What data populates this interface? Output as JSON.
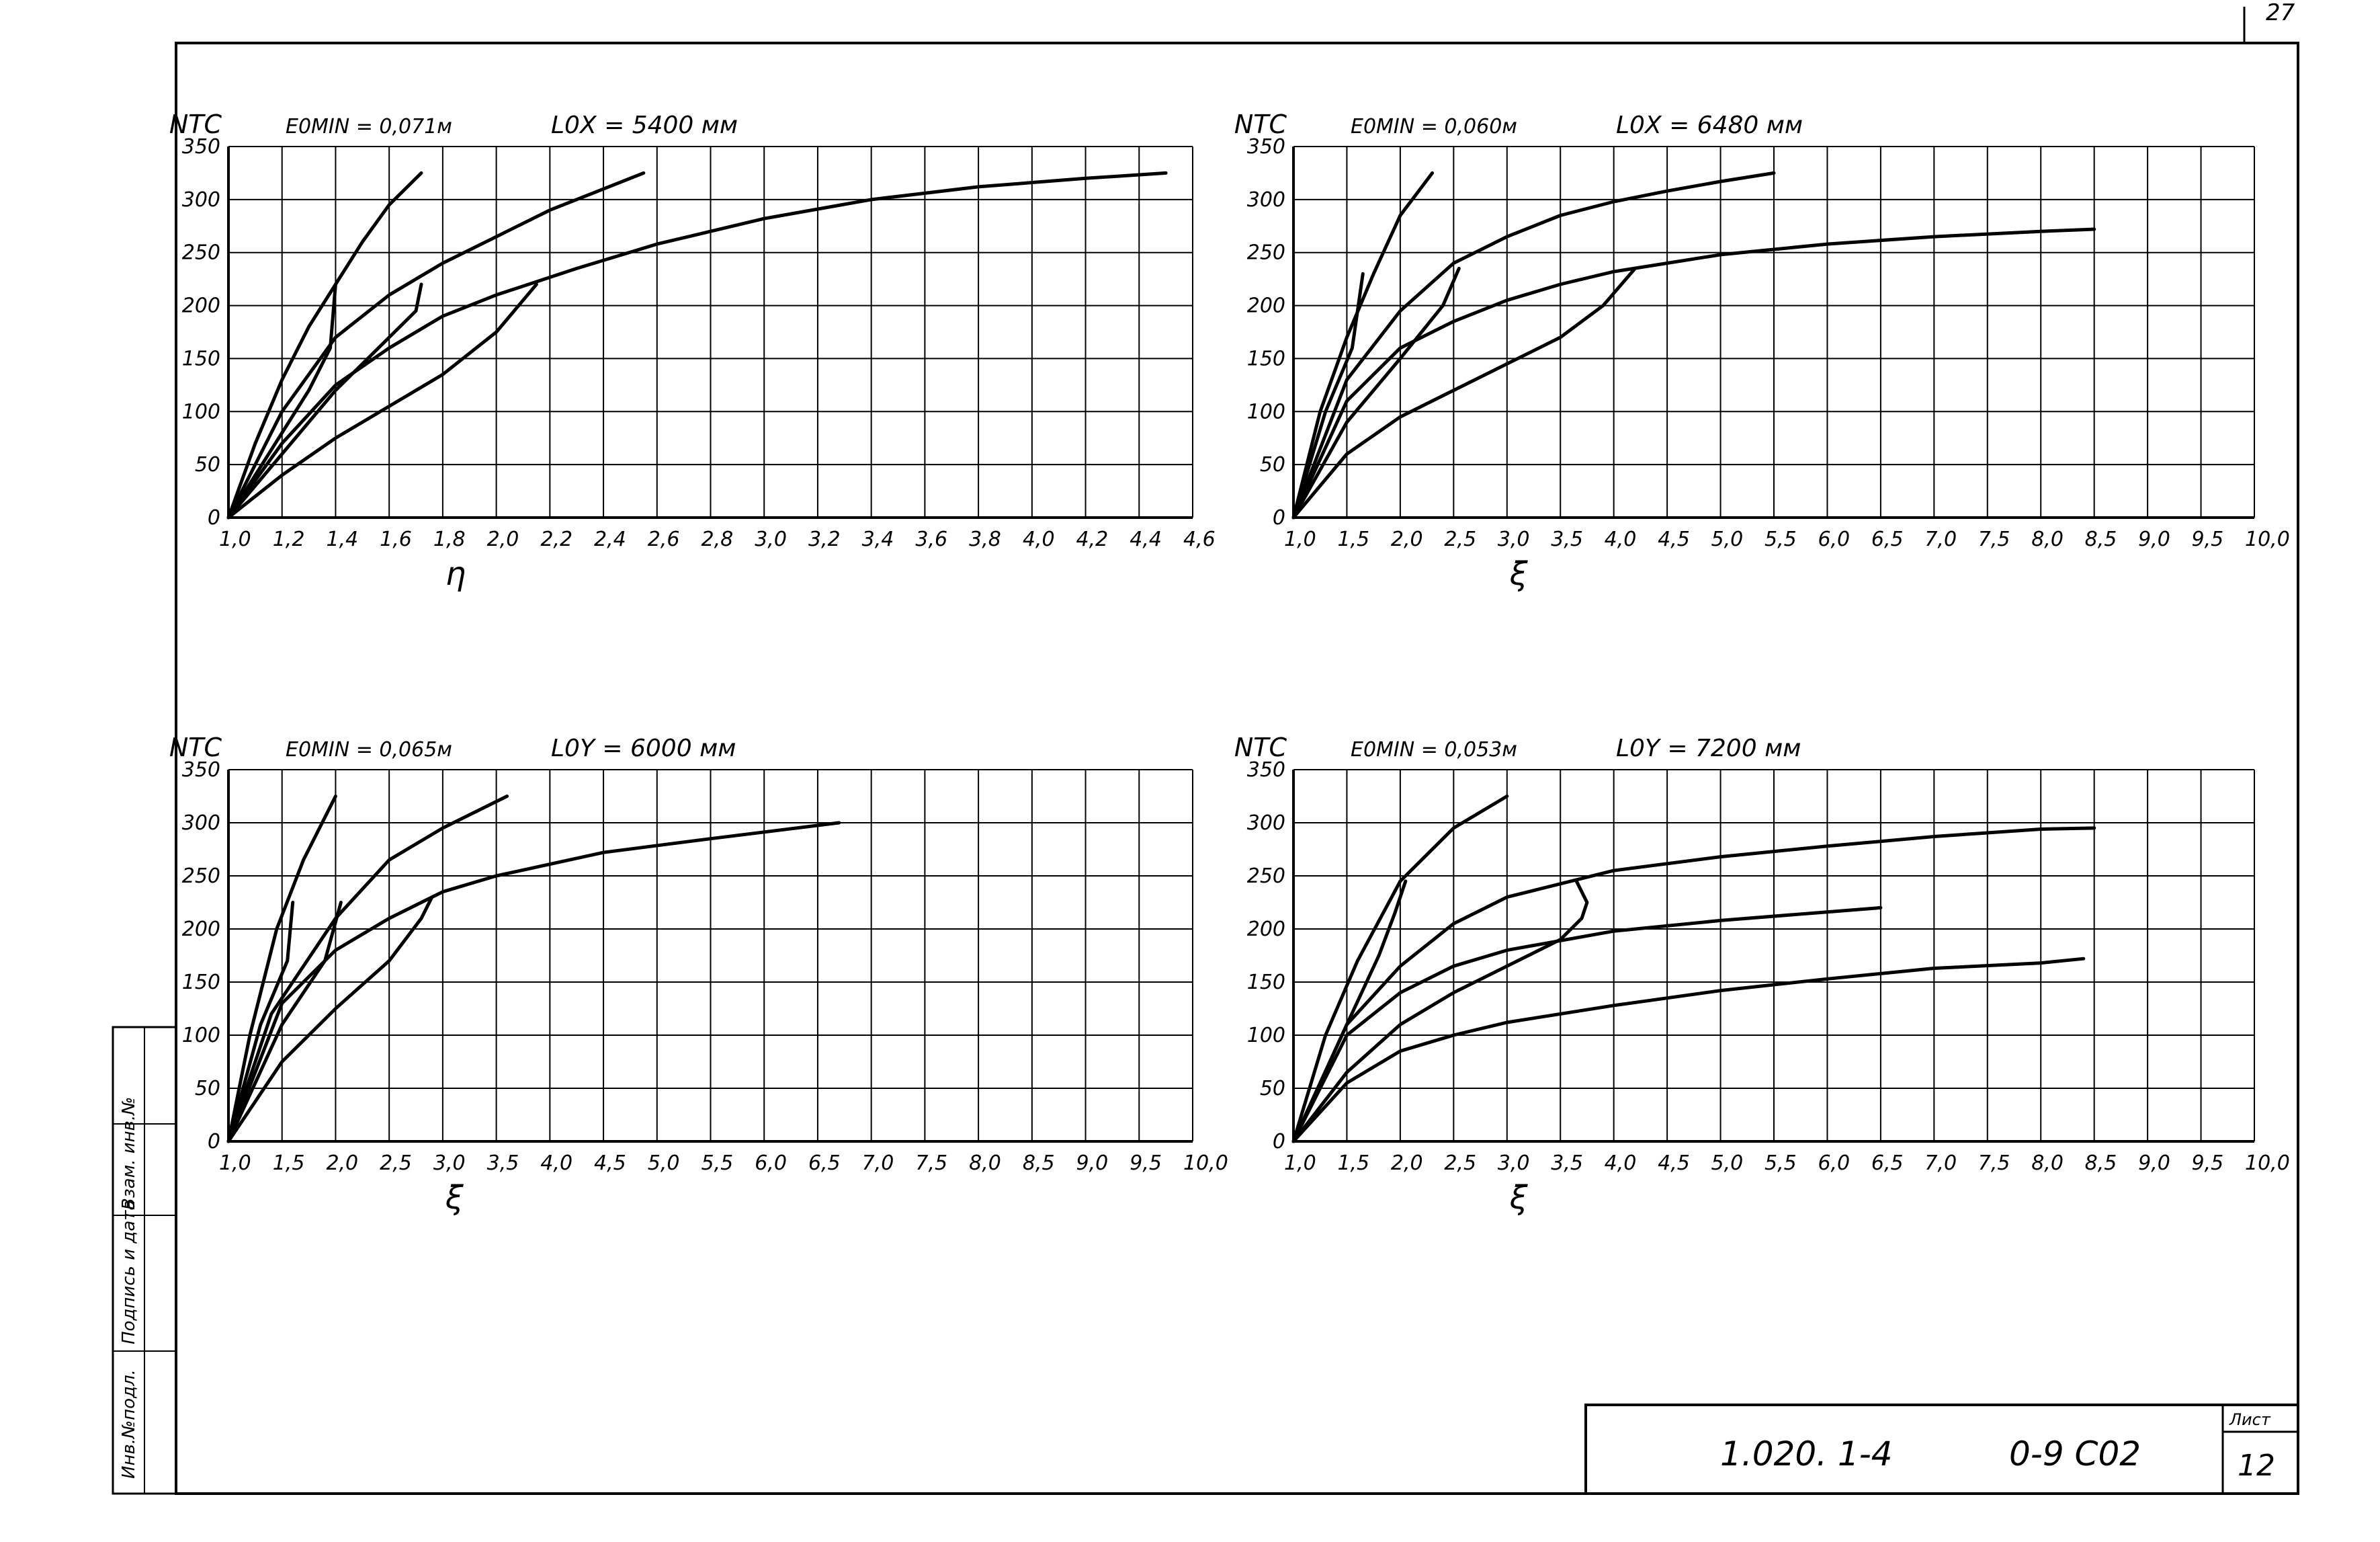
{
  "sheet": {
    "page_corner": "27",
    "stamp_left": "1.020. 1-4",
    "stamp_right": "0-9 C02",
    "list_label": "Лист",
    "list_number": "12",
    "side_labels": [
      "Инв.№подл.",
      "Подпись и дата",
      "Взам. инв.№"
    ]
  },
  "chart_data": [
    {
      "type": "line",
      "ylabel": "NTC",
      "xlabel": "η",
      "e0min_label": "E0MIN = 0,071м",
      "length_label": "L0X = 5400 мм",
      "xlim": [
        1.0,
        4.6
      ],
      "ylim": [
        0,
        350
      ],
      "x_ticks": [
        "1,0",
        "1,2",
        "1,4",
        "1,6",
        "1,8",
        "2,0",
        "2,2",
        "2,4",
        "2,6",
        "2,8",
        "3,0",
        "3,2",
        "3,4",
        "3,6",
        "3,8",
        "4,0",
        "4,2",
        "4,4",
        "4,6"
      ],
      "y_ticks": [
        "0",
        "50",
        "100",
        "150",
        "200",
        "250",
        "300",
        "350"
      ],
      "grid": true,
      "series": [
        {
          "points": [
            [
              1.0,
              0
            ],
            [
              1.1,
              70
            ],
            [
              1.2,
              130
            ],
            [
              1.3,
              180
            ],
            [
              1.4,
              220
            ],
            [
              1.5,
              260
            ],
            [
              1.6,
              295
            ],
            [
              1.72,
              325
            ]
          ]
        },
        {
          "points": [
            [
              1.0,
              0
            ],
            [
              1.2,
              100
            ],
            [
              1.4,
              170
            ],
            [
              1.6,
              210
            ],
            [
              1.8,
              240
            ],
            [
              2.0,
              265
            ],
            [
              2.2,
              290
            ],
            [
              2.4,
              310
            ],
            [
              2.55,
              325
            ]
          ]
        },
        {
          "points": [
            [
              1.0,
              0
            ],
            [
              1.2,
              70
            ],
            [
              1.4,
              125
            ],
            [
              1.6,
              160
            ],
            [
              1.8,
              190
            ],
            [
              2.0,
              210
            ],
            [
              2.3,
              235
            ],
            [
              2.6,
              258
            ],
            [
              3.0,
              282
            ],
            [
              3.4,
              300
            ],
            [
              3.8,
              312
            ],
            [
              4.2,
              320
            ],
            [
              4.5,
              325
            ]
          ]
        },
        {
          "points": [
            [
              1.0,
              0
            ],
            [
              1.15,
              60
            ],
            [
              1.3,
              120
            ],
            [
              1.38,
              160
            ],
            [
              1.4,
              220
            ]
          ]
        },
        {
          "points": [
            [
              1.0,
              0
            ],
            [
              1.2,
              60
            ],
            [
              1.4,
              120
            ],
            [
              1.6,
              170
            ],
            [
              1.7,
              195
            ],
            [
              1.72,
              220
            ]
          ]
        },
        {
          "points": [
            [
              1.0,
              0
            ],
            [
              1.2,
              40
            ],
            [
              1.4,
              75
            ],
            [
              1.6,
              105
            ],
            [
              1.8,
              135
            ],
            [
              2.0,
              175
            ],
            [
              2.1,
              205
            ],
            [
              2.15,
              220
            ]
          ]
        }
      ]
    },
    {
      "type": "line",
      "ylabel": "NTC",
      "xlabel": "ξ",
      "e0min_label": "E0MIN = 0,060м",
      "length_label": "L0X = 6480 мм",
      "xlim": [
        1.0,
        10.0
      ],
      "ylim": [
        0,
        350
      ],
      "x_ticks": [
        "1,0",
        "1,5",
        "2,0",
        "2,5",
        "3,0",
        "3,5",
        "4,0",
        "4,5",
        "5,0",
        "5,5",
        "6,0",
        "6,5",
        "7,0",
        "7,5",
        "8,0",
        "8,5",
        "9,0",
        "9,5",
        "10,0"
      ],
      "y_ticks": [
        "0",
        "50",
        "100",
        "150",
        "200",
        "250",
        "300",
        "350"
      ],
      "grid": true,
      "series": [
        {
          "points": [
            [
              1.0,
              0
            ],
            [
              1.25,
              100
            ],
            [
              1.5,
              170
            ],
            [
              1.75,
              230
            ],
            [
              2.0,
              285
            ],
            [
              2.3,
              325
            ]
          ]
        },
        {
          "points": [
            [
              1.0,
              0
            ],
            [
              1.5,
              130
            ],
            [
              2.0,
              195
            ],
            [
              2.5,
              240
            ],
            [
              3.0,
              265
            ],
            [
              3.5,
              285
            ],
            [
              4.0,
              298
            ],
            [
              4.5,
              308
            ],
            [
              5.0,
              317
            ],
            [
              5.5,
              325
            ]
          ]
        },
        {
          "points": [
            [
              1.0,
              0
            ],
            [
              1.5,
              110
            ],
            [
              2.0,
              160
            ],
            [
              2.5,
              185
            ],
            [
              3.0,
              205
            ],
            [
              3.5,
              220
            ],
            [
              4.0,
              232
            ],
            [
              5.0,
              248
            ],
            [
              6.0,
              258
            ],
            [
              7.0,
              265
            ],
            [
              8.0,
              270
            ],
            [
              8.5,
              272
            ]
          ]
        },
        {
          "points": [
            [
              1.0,
              0
            ],
            [
              1.3,
              100
            ],
            [
              1.55,
              160
            ],
            [
              1.65,
              230
            ]
          ]
        },
        {
          "points": [
            [
              1.0,
              0
            ],
            [
              1.5,
              90
            ],
            [
              2.0,
              150
            ],
            [
              2.4,
              200
            ],
            [
              2.55,
              235
            ]
          ]
        },
        {
          "points": [
            [
              1.0,
              0
            ],
            [
              1.5,
              60
            ],
            [
              2.0,
              95
            ],
            [
              2.5,
              120
            ],
            [
              3.0,
              145
            ],
            [
              3.5,
              170
            ],
            [
              3.9,
              200
            ],
            [
              4.2,
              235
            ]
          ]
        }
      ]
    },
    {
      "type": "line",
      "ylabel": "NTC",
      "xlabel": "ξ",
      "e0min_label": "E0MIN = 0,065м",
      "length_label": "L0Y = 6000 мм",
      "xlim": [
        1.0,
        10.0
      ],
      "ylim": [
        0,
        350
      ],
      "x_ticks": [
        "1,0",
        "1,5",
        "2,0",
        "2,5",
        "3,0",
        "3,5",
        "4,0",
        "4,5",
        "5,0",
        "5,5",
        "6,0",
        "6,5",
        "7,0",
        "7,5",
        "8,0",
        "8,5",
        "9,0",
        "9,5",
        "10,0"
      ],
      "y_ticks": [
        "0",
        "50",
        "100",
        "150",
        "200",
        "250",
        "300",
        "350"
      ],
      "grid": true,
      "series": [
        {
          "points": [
            [
              1.0,
              0
            ],
            [
              1.2,
              100
            ],
            [
              1.45,
              200
            ],
            [
              1.7,
              265
            ],
            [
              2.0,
              325
            ]
          ]
        },
        {
          "points": [
            [
              1.0,
              0
            ],
            [
              1.4,
              120
            ],
            [
              2.0,
              210
            ],
            [
              2.5,
              265
            ],
            [
              3.0,
              295
            ],
            [
              3.6,
              325
            ]
          ]
        },
        {
          "points": [
            [
              1.0,
              0
            ],
            [
              1.5,
              130
            ],
            [
              2.0,
              180
            ],
            [
              2.5,
              210
            ],
            [
              3.0,
              235
            ],
            [
              3.5,
              250
            ],
            [
              4.5,
              272
            ],
            [
              5.5,
              285
            ],
            [
              6.7,
              300
            ]
          ]
        },
        {
          "points": [
            [
              1.0,
              0
            ],
            [
              1.3,
              110
            ],
            [
              1.55,
              170
            ],
            [
              1.6,
              225
            ]
          ]
        },
        {
          "points": [
            [
              1.0,
              0
            ],
            [
              1.5,
              110
            ],
            [
              1.9,
              170
            ],
            [
              2.05,
              225
            ]
          ]
        },
        {
          "points": [
            [
              1.0,
              0
            ],
            [
              1.5,
              75
            ],
            [
              2.0,
              125
            ],
            [
              2.5,
              170
            ],
            [
              2.8,
              210
            ],
            [
              2.9,
              230
            ]
          ]
        }
      ]
    },
    {
      "type": "line",
      "ylabel": "NTC",
      "xlabel": "ξ",
      "e0min_label": "E0MIN = 0,053м",
      "length_label": "L0Y = 7200 мм",
      "xlim": [
        1.0,
        10.0
      ],
      "ylim": [
        0,
        350
      ],
      "x_ticks": [
        "1,0",
        "1,5",
        "2,0",
        "2,5",
        "3,0",
        "3,5",
        "4,0",
        "4,5",
        "5,0",
        "5,5",
        "6,0",
        "6,5",
        "7,0",
        "7,5",
        "8,0",
        "8,5",
        "9,0",
        "9,5",
        "10,0"
      ],
      "y_ticks": [
        "0",
        "50",
        "100",
        "150",
        "200",
        "250",
        "300",
        "350"
      ],
      "grid": true,
      "series": [
        {
          "points": [
            [
              1.0,
              0
            ],
            [
              1.3,
              100
            ],
            [
              1.6,
              170
            ],
            [
              2.0,
              245
            ],
            [
              2.5,
              295
            ],
            [
              3.0,
              325
            ]
          ]
        },
        {
          "points": [
            [
              1.0,
              0
            ],
            [
              1.5,
              110
            ],
            [
              2.0,
              165
            ],
            [
              2.5,
              205
            ],
            [
              3.0,
              230
            ],
            [
              4.0,
              255
            ],
            [
              5.0,
              268
            ],
            [
              6.0,
              278
            ],
            [
              7.0,
              287
            ],
            [
              8.0,
              294
            ],
            [
              8.5,
              295
            ]
          ]
        },
        {
          "points": [
            [
              1.0,
              0
            ],
            [
              1.5,
              100
            ],
            [
              2.0,
              140
            ],
            [
              2.5,
              165
            ],
            [
              3.0,
              180
            ],
            [
              4.0,
              198
            ],
            [
              5.0,
              208
            ],
            [
              6.0,
              216
            ],
            [
              6.5,
              220
            ]
          ]
        },
        {
          "points": [
            [
              1.0,
              0
            ],
            [
              1.5,
              55
            ],
            [
              2.0,
              85
            ],
            [
              2.5,
              100
            ],
            [
              3.0,
              112
            ],
            [
              4.0,
              128
            ],
            [
              5.0,
              142
            ],
            [
              6.0,
              153
            ],
            [
              7.0,
              163
            ],
            [
              8.0,
              168
            ],
            [
              8.4,
              172
            ]
          ]
        },
        {
          "points": [
            [
              1.0,
              0
            ],
            [
              1.5,
              110
            ],
            [
              1.8,
              175
            ],
            [
              1.95,
              215
            ],
            [
              2.05,
              245
            ]
          ]
        },
        {
          "points": [
            [
              1.0,
              0
            ],
            [
              1.5,
              65
            ],
            [
              2.0,
              110
            ],
            [
              2.5,
              140
            ],
            [
              3.0,
              165
            ],
            [
              3.5,
              190
            ],
            [
              3.7,
              210
            ],
            [
              3.75,
              225
            ],
            [
              3.65,
              245
            ]
          ]
        }
      ]
    }
  ]
}
